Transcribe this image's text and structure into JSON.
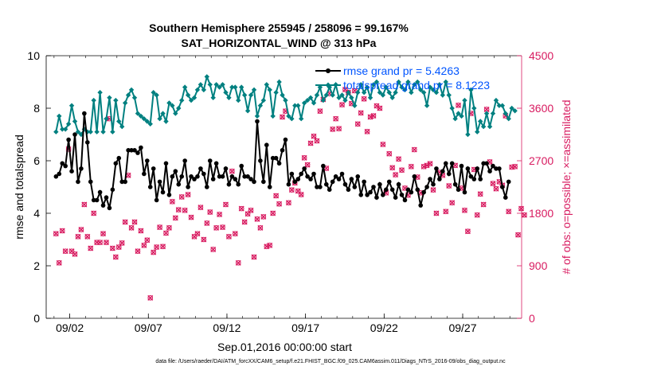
{
  "chart_data": {
    "type": "line",
    "title": "Southern Hemisphere 255945 / 258096 = 99.167%",
    "subtitle": "SAT_HORIZONTAL_WIND @ 313 hPa",
    "xlabel": "Sep.01,2016 00:00:00 start",
    "ylabel_left": "rmse and totalspread",
    "ylabel_right": "# of obs: o=possible; ×=assimilated",
    "footer": "data file: /Users/raeder/DAI/ATM_forcXX/CAM6_setup/f.e21.FHIST_BGC.f09_025.CAM6assim.011/Diags_NTrS_2016-09/obs_diag_output.nc",
    "xlim": [
      0.5,
      30.75
    ],
    "x_ticks": [
      2,
      7,
      12,
      17,
      22,
      27
    ],
    "x_tick_labels": [
      "09/02",
      "09/07",
      "09/12",
      "09/17",
      "09/22",
      "09/27"
    ],
    "ylim_left": [
      0,
      10
    ],
    "y_ticks_left": [
      "0",
      "2",
      "4",
      "6",
      "8",
      "10"
    ],
    "ylim_right": [
      0,
      4500
    ],
    "y_ticks_right": [
      "0",
      "900",
      "1800",
      "2700",
      "3600",
      "4500"
    ],
    "grid": false,
    "legend": {
      "placement": "top-right",
      "entries": [
        "rmse grand pr = 5.4263",
        "totalspread grand pr = 8.1223"
      ]
    },
    "colors": {
      "rmse": "#000000",
      "totalspread": "#008080",
      "obs": "#d81b60",
      "legend_text": "#0055ff",
      "axes": "#000000"
    },
    "series": [
      {
        "name": "rmse",
        "values": [
          5.4,
          5.5,
          5.9,
          5.8,
          6.8,
          5.6,
          7.0,
          5.2,
          5.7,
          7.8,
          6.7,
          5.2,
          4.5,
          4.5,
          4.8,
          4.3,
          4.6,
          4.2,
          4.9,
          5.9,
          6.1,
          5.2,
          5.2,
          6.4,
          6.4,
          6.4,
          6.3,
          6.5,
          5.5,
          6.0,
          5.0,
          5.7,
          4.5,
          5.2,
          4.8,
          5.9,
          4.7,
          5.4,
          5.6,
          5.1,
          5.4,
          6.0,
          5.0,
          5.4,
          5.3,
          5.4,
          5.7,
          5.5,
          5.0,
          6.0,
          5.3,
          5.9,
          5.4,
          5.4,
          5.7,
          5.1,
          5.4,
          5.3,
          5.1,
          5.8,
          5.4,
          5.4,
          5.3,
          5.2,
          7.5,
          6.0,
          5.2,
          6.6,
          5.0,
          6.1,
          6.1,
          5.9,
          6.4,
          6.8,
          5.1,
          5.5,
          5.2,
          5.3,
          5.5,
          5.7,
          5.4,
          5.3,
          5.5,
          5.0,
          5.0,
          5.8,
          5.1,
          4.9,
          5.2,
          5.4,
          5.3,
          5.5,
          5.1,
          4.9,
          5.3,
          5.0,
          5.4,
          4.7,
          5.2,
          4.7,
          4.8,
          5.0,
          4.6,
          5.1,
          4.7,
          4.9,
          5.2,
          4.9,
          4.6,
          5.1,
          4.7,
          4.5,
          4.9,
          4.8,
          5.4,
          4.9,
          4.3,
          4.8,
          5.0,
          5.3,
          5.1,
          5.7,
          5.3,
          5.6,
          5.9,
          5.5,
          5.9,
          5.1,
          4.9,
          5.8,
          4.8,
          5.7,
          5.4,
          5.3,
          5.7,
          5.3,
          5.9,
          5.9,
          5.6,
          5.8,
          5.7,
          5.7,
          5.0,
          4.6,
          5.2
        ],
        "x_start": 1.125,
        "x_step": 0.2
      },
      {
        "name": "totalspread",
        "values": [
          7.1,
          7.7,
          7.2,
          7.2,
          7.4,
          8.1,
          7.5,
          7.1,
          7.0,
          7.2,
          7.1,
          7.1,
          8.3,
          7.1,
          8.6,
          7.1,
          7.6,
          8.4,
          7.1,
          8.3,
          7.5,
          7.3,
          8.2,
          8.5,
          8.7,
          8.4,
          7.8,
          7.7,
          7.6,
          7.5,
          7.4,
          8.6,
          8.5,
          7.6,
          7.8,
          7.5,
          8.2,
          8.1,
          7.8,
          8.0,
          8.3,
          8.8,
          8.5,
          8.3,
          8.4,
          8.7,
          8.9,
          8.7,
          9.2,
          8.9,
          8.4,
          8.9,
          8.8,
          8.9,
          8.6,
          8.4,
          8.8,
          8.8,
          8.3,
          8.8,
          8.5,
          7.9,
          8.5,
          8.7,
          7.7,
          8.1,
          8.3,
          8.9,
          8.7,
          7.7,
          8.6,
          9.0,
          8.5,
          8.3,
          7.7,
          7.6,
          8.1,
          8.1,
          7.6,
          8.2,
          8.3,
          8.4,
          8.2,
          8.5,
          8.8,
          8.3,
          8.5,
          8.8,
          8.5,
          8.9,
          8.4,
          8.5,
          8.3,
          8.6,
          8.4,
          8.1,
          8.6,
          8.9,
          8.6,
          8.8,
          8.4,
          8.9,
          9.0,
          8.6,
          8.5,
          8.8,
          8.6,
          8.4,
          8.6,
          9.0,
          8.8,
          8.7,
          9.0,
          8.6,
          8.9,
          9.0,
          8.7,
          8.6,
          8.1,
          8.8,
          8.7,
          8.6,
          8.9,
          8.5,
          9.0,
          8.5,
          8.0,
          7.6,
          7.8,
          7.7,
          8.3,
          7.0,
          8.7,
          8.0,
          7.1,
          7.5,
          7.3,
          7.8,
          7.3,
          7.8,
          8.3,
          8.1,
          8.1,
          7.8,
          7.6,
          8.0,
          7.9
        ],
        "x_start": 1.125,
        "x_step": 0.2
      },
      {
        "name": "obs_possible",
        "values": [
          1450,
          950,
          1500,
          1150,
          2900,
          1150,
          1100,
          1400,
          1520,
          1950,
          1400,
          1200,
          1800,
          1300,
          1300,
          1450,
          1300,
          3420,
          1200,
          1050,
          1220,
          1290,
          1650,
          2450,
          1550,
          1650,
          1150,
          1500,
          1250,
          1340,
          350,
          1130,
          1220,
          1560,
          1230,
          1460,
          1550,
          2000,
          1720,
          1860,
          2080,
          1850,
          2120,
          1730,
          1400,
          1450,
          1900,
          1350,
          1630,
          1820,
          1180,
          1550,
          1780,
          1560,
          1950,
          1400,
          2520,
          1450,
          950,
          1880,
          1650,
          1790,
          1850,
          1050,
          1700,
          1550,
          1740,
          1230,
          1250,
          1800,
          2100,
          1960,
          3450,
          3550,
          1980,
          2200,
          2320,
          2180,
          2120,
          2750,
          2630,
          3000,
          3120,
          3040,
          3550,
          3750,
          2570,
          3850,
          3240,
          3420,
          3250,
          3660,
          3920,
          3870,
          3680,
          3900,
          3330,
          3520,
          3760,
          3200,
          3450,
          3470,
          3640,
          3600,
          2980,
          2150,
          2820,
          2580,
          2460,
          2730,
          2540,
          2230,
          2110,
          2600,
          2890,
          2420,
          2150,
          2600,
          2620,
          2650,
          2200,
          1800,
          2500,
          2450,
          1830,
          2270,
          1980,
          2620,
          3650,
          2230,
          1850,
          1490,
          3510,
          2550,
          1770,
          2130,
          1950,
          3580,
          2680,
          2310,
          2220,
          2340,
          2280,
          3470,
          1830,
          2590,
          2600,
          1430,
          1880,
          1770
        ],
        "x_start": 1.125,
        "x_step": 0.2
      }
    ]
  }
}
